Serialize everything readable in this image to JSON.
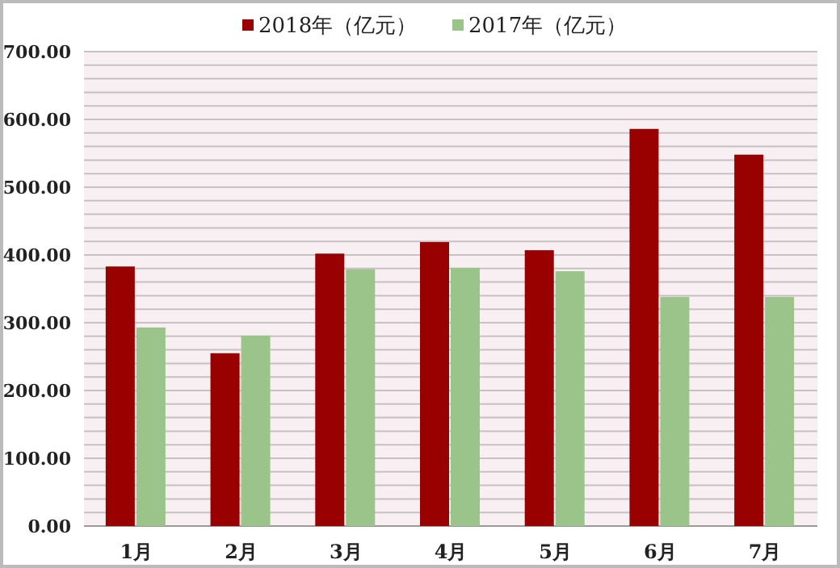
{
  "chart_data": {
    "type": "bar",
    "categories": [
      "1月",
      "2月",
      "3月",
      "4月",
      "5月",
      "6月",
      "7月"
    ],
    "series": [
      {
        "name": "2018年（亿元）",
        "color": "#990000",
        "values": [
          383,
          255,
          402,
          419,
          407,
          586,
          548
        ]
      },
      {
        "name": "2017年（亿元）",
        "color": "#9bc48a",
        "values": [
          293,
          281,
          379,
          381,
          376,
          338,
          338
        ]
      }
    ],
    "ylim": [
      0,
      700
    ],
    "yticks": [
      {
        "value": 0,
        "label": "0.00"
      },
      {
        "value": 20,
        "label": null
      },
      {
        "value": 40,
        "label": null
      },
      {
        "value": 60,
        "label": null
      },
      {
        "value": 80,
        "label": null
      },
      {
        "value": 100,
        "label": "100.00"
      },
      {
        "value": 120,
        "label": null
      },
      {
        "value": 140,
        "label": null
      },
      {
        "value": 160,
        "label": null
      },
      {
        "value": 180,
        "label": null
      },
      {
        "value": 200,
        "label": "200.00"
      },
      {
        "value": 220,
        "label": null
      },
      {
        "value": 240,
        "label": null
      },
      {
        "value": 260,
        "label": null
      },
      {
        "value": 280,
        "label": null
      },
      {
        "value": 300,
        "label": "300.00"
      },
      {
        "value": 320,
        "label": null
      },
      {
        "value": 340,
        "label": null
      },
      {
        "value": 360,
        "label": null
      },
      {
        "value": 380,
        "label": null
      },
      {
        "value": 400,
        "label": "400.00"
      },
      {
        "value": 420,
        "label": null
      },
      {
        "value": 440,
        "label": null
      },
      {
        "value": 460,
        "label": null
      },
      {
        "value": 480,
        "label": null
      },
      {
        "value": 500,
        "label": "500.00"
      },
      {
        "value": 520,
        "label": null
      },
      {
        "value": 540,
        "label": null
      },
      {
        "value": 560,
        "label": null
      },
      {
        "value": 580,
        "label": null
      },
      {
        "value": 600,
        "label": "600.00"
      },
      {
        "value": 620,
        "label": null
      },
      {
        "value": 640,
        "label": null
      },
      {
        "value": 660,
        "label": null
      },
      {
        "value": 680,
        "label": null
      },
      {
        "value": 700,
        "label": "700.00"
      }
    ],
    "grid": "y",
    "legend": "top"
  }
}
